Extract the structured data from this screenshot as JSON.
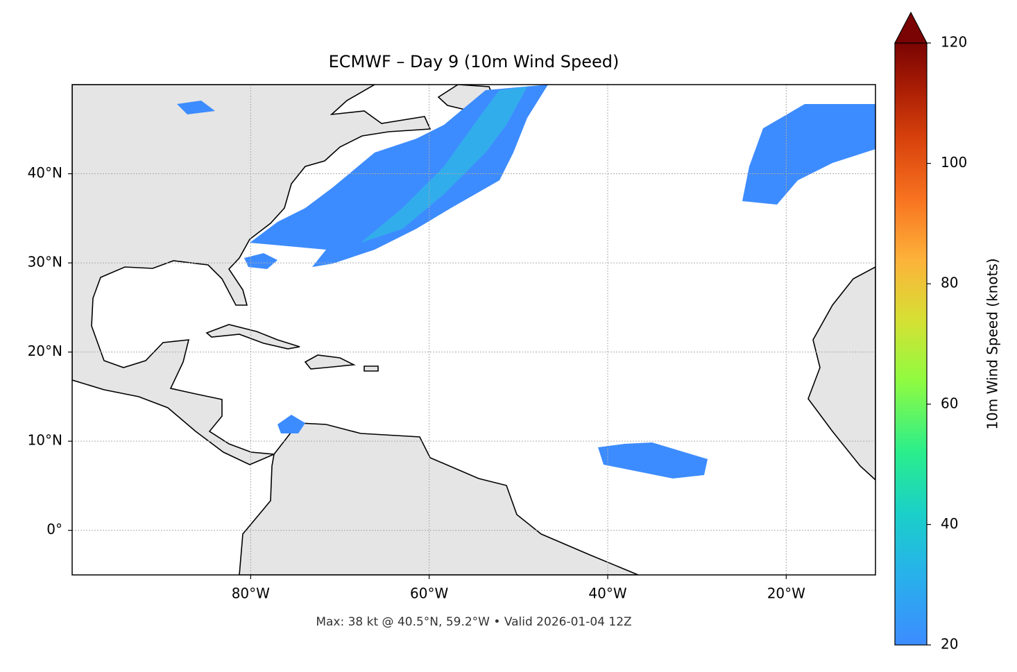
{
  "chart_data": {
    "type": "map",
    "title": "ECMWF – Day 9 (10m Wind Speed)",
    "footer": "Max: 38 kt @ 40.5°N, 59.2°W • Valid 2026-01-04 12Z",
    "xlim": [
      -100,
      -10
    ],
    "ylim": [
      -5,
      50
    ],
    "xticks": [
      {
        "value": -80,
        "label": "80°W"
      },
      {
        "value": -60,
        "label": "60°W"
      },
      {
        "value": -40,
        "label": "40°W"
      },
      {
        "value": -20,
        "label": "20°W"
      }
    ],
    "yticks": [
      {
        "value": 0,
        "label": "0°"
      },
      {
        "value": 10,
        "label": "10°N"
      },
      {
        "value": 20,
        "label": "20°N"
      },
      {
        "value": 30,
        "label": "30°N"
      },
      {
        "value": 40,
        "label": "40°N"
      }
    ],
    "grid": true,
    "colorbar": {
      "label": "10m Wind Speed (knots)",
      "lim": [
        20,
        120
      ],
      "ticks": [
        20,
        40,
        60,
        80,
        100,
        120
      ]
    }
  }
}
